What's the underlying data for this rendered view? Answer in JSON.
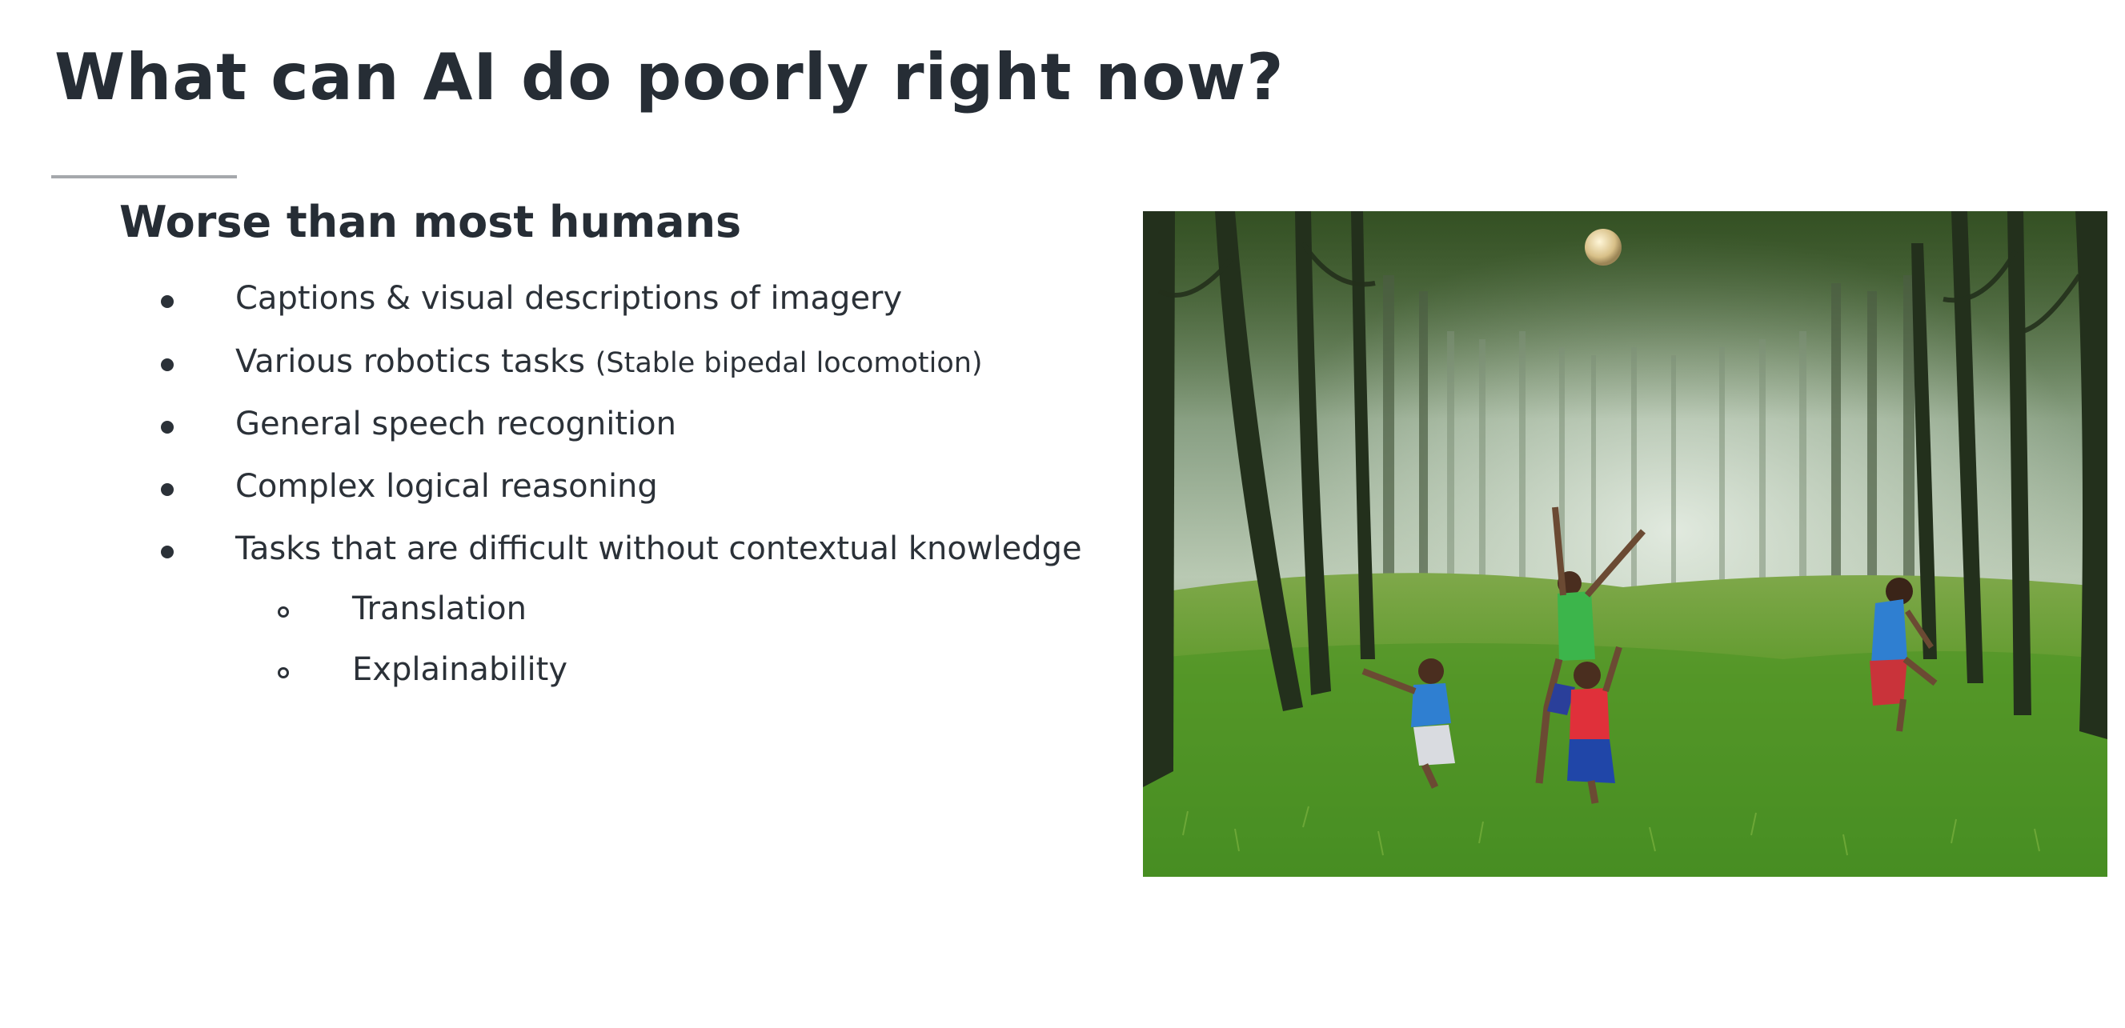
{
  "slide": {
    "title": "What can AI do poorly right now?",
    "subheading": "Worse than most humans",
    "bullets": [
      {
        "text": "Captions & visual descriptions of imagery",
        "note": ""
      },
      {
        "text": "Various robotics tasks ",
        "note": "(Stable bipedal locomotion)"
      },
      {
        "text": "General speech recognition",
        "note": ""
      },
      {
        "text": "Complex logical reasoning",
        "note": ""
      },
      {
        "text": "Tasks that are difficult without contextual knowledge",
        "note": ""
      }
    ],
    "sub_bullets": [
      {
        "text": "Translation"
      },
      {
        "text": "Explainability"
      }
    ],
    "photo": {
      "icon": "photo-children-jumping-in-forest"
    },
    "colors": {
      "title": "#262d35",
      "text": "#2b3138",
      "rule": "#a5a8ac",
      "background": "#ffffff"
    }
  }
}
